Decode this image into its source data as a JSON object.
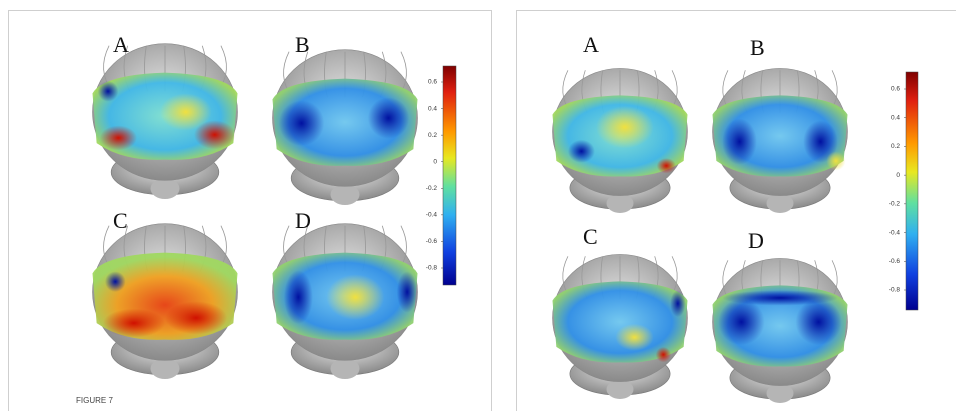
{
  "left_figure": {
    "panel_labels": [
      "A",
      "B",
      "C",
      "D"
    ],
    "colorbar_ticks": [
      0.6,
      0.4,
      0.2,
      0,
      -0.2,
      -0.4,
      -0.6,
      -0.8
    ]
  },
  "right_figure": {
    "panel_labels": [
      "A",
      "B",
      "C",
      "D"
    ],
    "colorbar_ticks": [
      0.6,
      0.4,
      0.2,
      0,
      -0.2,
      -0.4,
      -0.6,
      -0.8
    ]
  },
  "caption": "FIGURE 7"
}
